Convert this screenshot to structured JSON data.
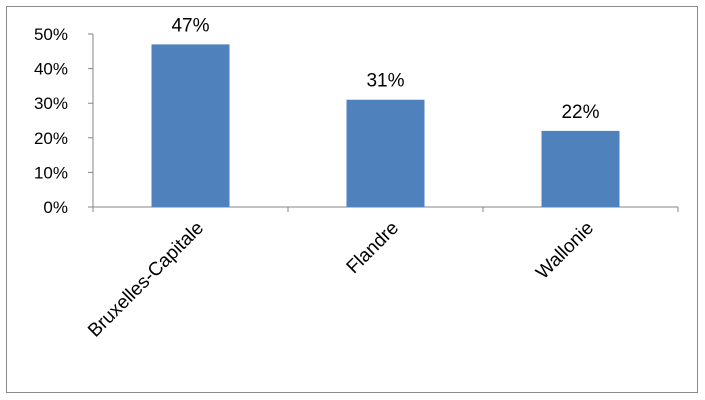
{
  "chart_data": {
    "type": "bar",
    "categories": [
      "Bruxelles-Capitale",
      "Flandre",
      "Wallonie"
    ],
    "values": [
      47,
      31,
      22
    ],
    "data_labels": [
      "47%",
      "31%",
      "22%"
    ],
    "y_tick_labels": [
      "0%",
      "10%",
      "20%",
      "30%",
      "40%",
      "50%"
    ],
    "ylim": [
      0,
      50
    ],
    "grid": false,
    "legend": "none",
    "bar_color": "#4f81bd",
    "axis_color": "#868686"
  }
}
